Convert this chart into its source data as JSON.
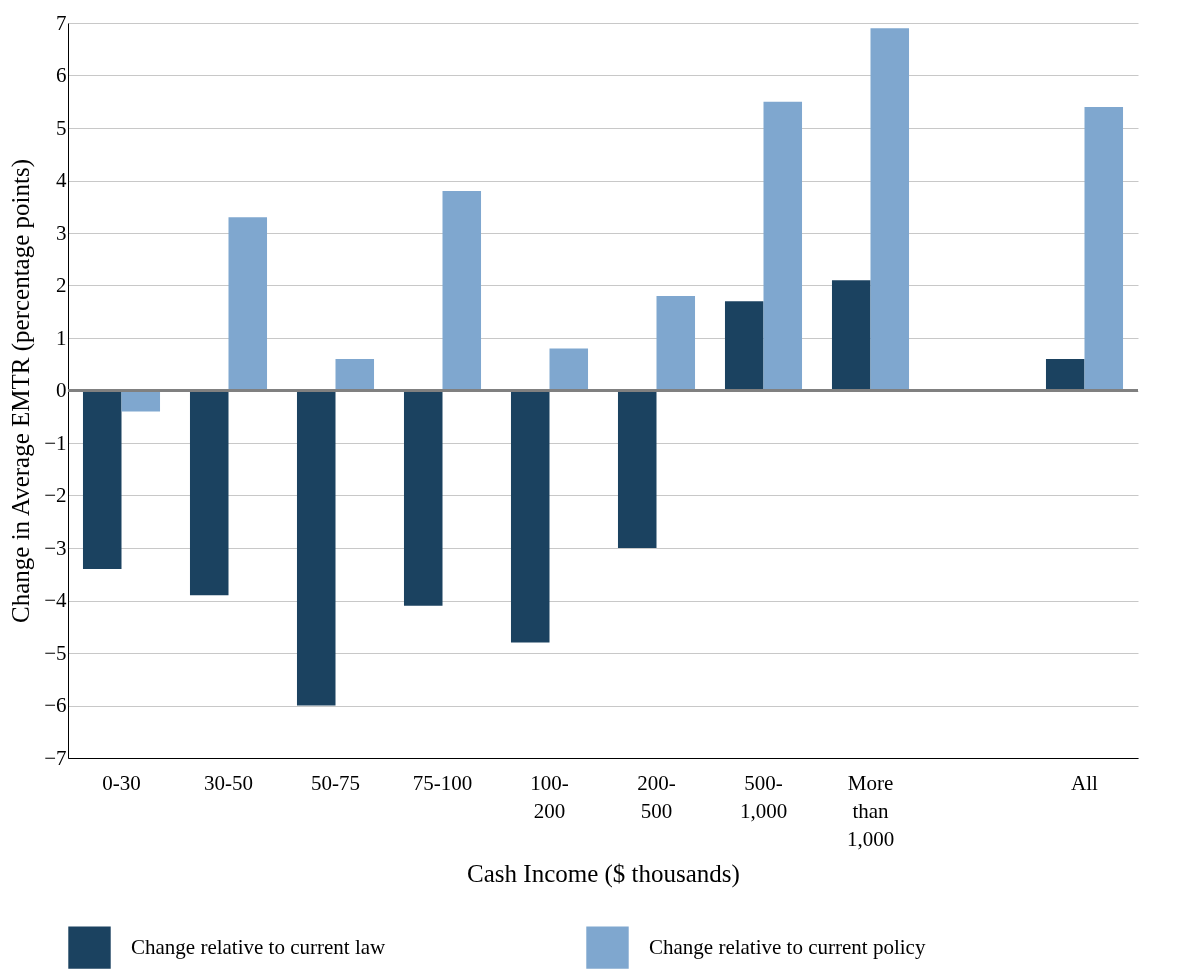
{
  "chart_data": {
    "type": "bar",
    "xlabel": "Cash Income ($ thousands)",
    "ylabel": "Change in Average EMTR (percentage points)",
    "categories": [
      "0-30",
      "30-50",
      "50-75",
      "75-100",
      "100-200",
      "200-500",
      "500-1,000",
      "More than 1,000",
      null,
      "All"
    ],
    "series": [
      {
        "name": "Change relative to current law",
        "color": "#1b4260",
        "values": [
          -3.4,
          -3.9,
          -6.0,
          -4.1,
          -4.8,
          -3.0,
          1.7,
          2.1,
          null,
          0.6
        ]
      },
      {
        "name": "Change relative to current policy",
        "color": "#7fa7cf",
        "values": [
          -0.4,
          3.3,
          0.6,
          3.8,
          0.8,
          1.8,
          5.5,
          6.9,
          null,
          5.4
        ]
      }
    ],
    "ylim": [
      -7,
      7
    ],
    "yticks": [
      -7,
      -6,
      -5,
      -4,
      -3,
      -2,
      -1,
      0,
      1,
      2,
      3,
      4,
      5,
      6,
      7
    ],
    "grid": "y",
    "legend": "bottom",
    "ref_lines": [
      {
        "axis": "y",
        "value": 0,
        "color": "#808080"
      }
    ]
  }
}
